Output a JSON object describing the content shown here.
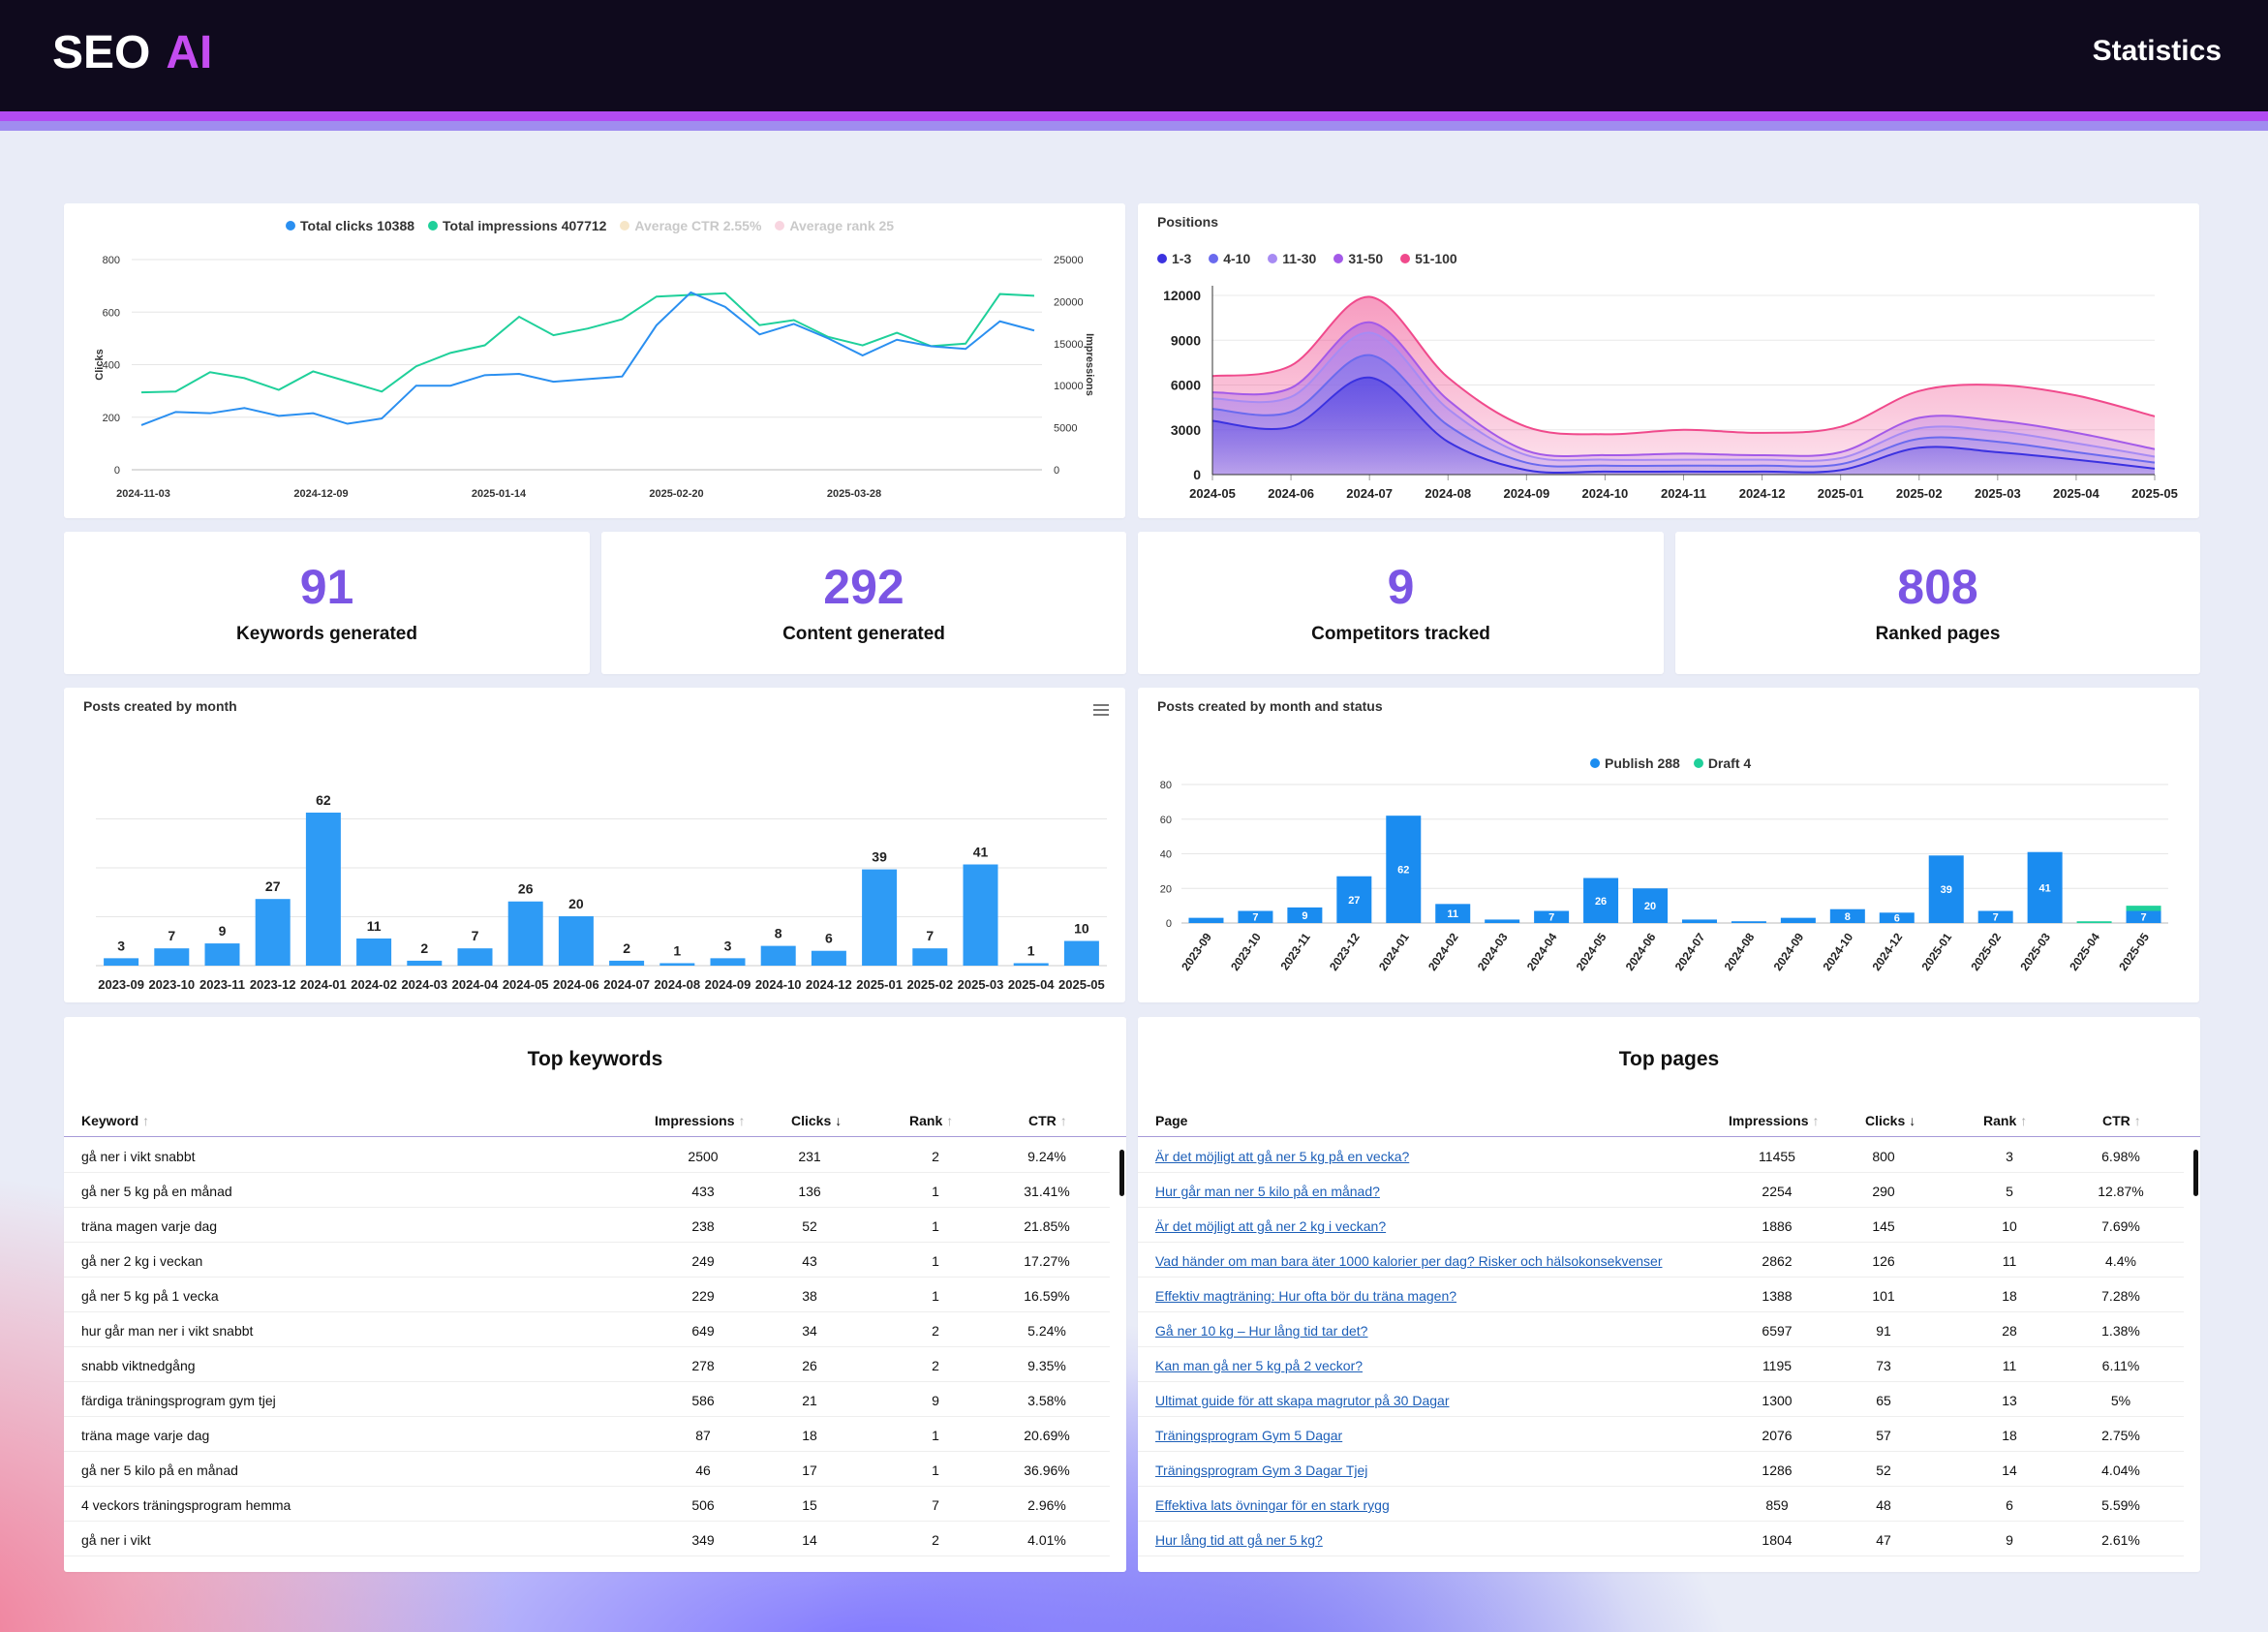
{
  "app": {
    "logo_text": "SEO",
    "logo_accent": "AI",
    "page_title": "Statistics",
    "brand_color": "#c44cf0",
    "accent_color": "#7b55e4"
  },
  "stats": [
    {
      "value": "91",
      "label": "Keywords generated"
    },
    {
      "value": "292",
      "label": "Content generated"
    },
    {
      "value": "9",
      "label": "Competitors tracked"
    },
    {
      "value": "808",
      "label": "Ranked pages"
    }
  ],
  "top_keywords": {
    "title": "Top keywords",
    "headers": [
      "Keyword",
      "Impressions",
      "Clicks",
      "Rank",
      "CTR"
    ],
    "rows": [
      [
        "gå ner i vikt snabbt",
        "2500",
        "231",
        "2",
        "9.24%"
      ],
      [
        "gå ner 5 kg på en månad",
        "433",
        "136",
        "1",
        "31.41%"
      ],
      [
        "träna magen varje dag",
        "238",
        "52",
        "1",
        "21.85%"
      ],
      [
        "gå ner 2 kg i veckan",
        "249",
        "43",
        "1",
        "17.27%"
      ],
      [
        "gå ner 5 kg på 1 vecka",
        "229",
        "38",
        "1",
        "16.59%"
      ],
      [
        "hur går man ner i vikt snabbt",
        "649",
        "34",
        "2",
        "5.24%"
      ],
      [
        "snabb viktnedgång",
        "278",
        "26",
        "2",
        "9.35%"
      ],
      [
        "färdiga träningsprogram gym tjej",
        "586",
        "21",
        "9",
        "3.58%"
      ],
      [
        "träna mage varje dag",
        "87",
        "18",
        "1",
        "20.69%"
      ],
      [
        "gå ner 5 kilo på en månad",
        "46",
        "17",
        "1",
        "36.96%"
      ],
      [
        "4 veckors träningsprogram hemma",
        "506",
        "15",
        "7",
        "2.96%"
      ],
      [
        "gå ner i vikt",
        "349",
        "14",
        "2",
        "4.01%"
      ]
    ]
  },
  "top_pages": {
    "title": "Top pages",
    "headers": [
      "Page",
      "Impressions",
      "Clicks",
      "Rank",
      "CTR"
    ],
    "rows": [
      [
        "Är det möjligt att gå ner 5 kg på en vecka?",
        "11455",
        "800",
        "3",
        "6.98%"
      ],
      [
        "Hur går man ner 5 kilo på en månad?",
        "2254",
        "290",
        "5",
        "12.87%"
      ],
      [
        "Är det möjligt att gå ner 2 kg i veckan?",
        "1886",
        "145",
        "10",
        "7.69%"
      ],
      [
        "Vad händer om man bara äter 1000 kalorier per dag? Risker och hälsokonsekvenser",
        "2862",
        "126",
        "11",
        "4.4%"
      ],
      [
        "Effektiv magträning: Hur ofta bör du träna magen?",
        "1388",
        "101",
        "18",
        "7.28%"
      ],
      [
        "Gå ner 10 kg – Hur lång tid tar det?",
        "6597",
        "91",
        "28",
        "1.38%"
      ],
      [
        "Kan man gå ner 5 kg på 2 veckor?",
        "1195",
        "73",
        "11",
        "6.11%"
      ],
      [
        "Ultimat guide för att skapa magrutor på 30 Dagar",
        "1300",
        "65",
        "13",
        "5%"
      ],
      [
        "Träningsprogram Gym 5 Dagar",
        "2076",
        "57",
        "18",
        "2.75%"
      ],
      [
        "Träningsprogram Gym 3 Dagar Tjej",
        "1286",
        "52",
        "14",
        "4.04%"
      ],
      [
        "Effektiva lats övningar för en stark rygg",
        "859",
        "48",
        "6",
        "5.59%"
      ],
      [
        "Hur lång tid att gå ner 5 kg?",
        "1804",
        "47",
        "9",
        "2.61%"
      ]
    ]
  },
  "chart_data": [
    {
      "type": "line",
      "legend": [
        {
          "label": "Total clicks 10388",
          "color": "#2a8ff0",
          "active": true
        },
        {
          "label": "Total impressions 407712",
          "color": "#1fd09a",
          "active": true
        },
        {
          "label": "Average CTR 2.55%",
          "color": "#f6e6c8",
          "active": false
        },
        {
          "label": "Average rank 25",
          "color": "#f8d5e0",
          "active": false
        }
      ],
      "ylabel": "Clicks",
      "y2label": "Impressions",
      "ylim": [
        0,
        800
      ],
      "y2lim": [
        0,
        25000
      ],
      "yticks": [
        "0",
        "200",
        "400",
        "600",
        "800"
      ],
      "y2ticks": [
        "0",
        "5000",
        "10000",
        "15000",
        "20000",
        "25000"
      ],
      "xticks": [
        "2024-11-03",
        "2024-12-09",
        "2025-01-14",
        "2025-02-20",
        "2025-03-28"
      ],
      "series": [
        {
          "name": "Total clicks",
          "values": [
            170,
            220,
            215,
            235,
            205,
            215,
            175,
            195,
            320,
            320,
            360,
            365,
            335,
            345,
            355,
            550,
            675,
            620,
            515,
            555,
            500,
            435,
            495,
            470,
            460,
            565,
            530
          ]
        },
        {
          "name": "Total impressions",
          "values": [
            9200,
            9300,
            11600,
            10900,
            9500,
            11700,
            10500,
            9300,
            12300,
            13900,
            14800,
            18200,
            16000,
            16800,
            17900,
            20600,
            20800,
            21000,
            17200,
            17800,
            15800,
            14800,
            16300,
            14700,
            15000,
            20900,
            20700
          ]
        }
      ]
    },
    {
      "type": "area",
      "title": "Positions",
      "categories": [
        "2024-05",
        "2024-06",
        "2024-07",
        "2024-08",
        "2024-09",
        "2024-10",
        "2024-11",
        "2024-12",
        "2025-01",
        "2025-02",
        "2025-03",
        "2025-04",
        "2025-05"
      ],
      "ylim": [
        0,
        12000
      ],
      "yticks": [
        "0",
        "3000",
        "6000",
        "9000",
        "12000"
      ],
      "stacked": true,
      "series": [
        {
          "name": "1-3",
          "color": "#3b32e0",
          "values": [
            3600,
            3200,
            6500,
            2200,
            300,
            200,
            200,
            200,
            300,
            1800,
            1500,
            1000,
            400
          ]
        },
        {
          "name": "4-10",
          "color": "#6a6aee",
          "values": [
            800,
            1000,
            1500,
            1100,
            500,
            400,
            400,
            400,
            400,
            600,
            700,
            500,
            400
          ]
        },
        {
          "name": "11-30",
          "color": "#a78bf3",
          "values": [
            700,
            1000,
            1500,
            1100,
            500,
            400,
            400,
            400,
            400,
            700,
            700,
            600,
            400
          ]
        },
        {
          "name": "31-50",
          "color": "#a35ae8",
          "values": [
            400,
            600,
            700,
            600,
            300,
            300,
            400,
            300,
            400,
            700,
            700,
            700,
            500
          ]
        },
        {
          "name": "51-100",
          "color": "#f04a8c",
          "values": [
            1100,
            1500,
            1700,
            1500,
            1600,
            1400,
            1600,
            1500,
            1700,
            1800,
            2400,
            2500,
            2200
          ]
        }
      ]
    },
    {
      "type": "bar",
      "title": "Posts created by month",
      "categories": [
        "2023-09",
        "2023-10",
        "2023-11",
        "2023-12",
        "2024-01",
        "2024-02",
        "2024-03",
        "2024-04",
        "2024-05",
        "2024-06",
        "2024-07",
        "2024-08",
        "2024-09",
        "2024-10",
        "2024-12",
        "2025-01",
        "2025-02",
        "2025-03",
        "2025-04",
        "2025-05"
      ],
      "values": [
        3,
        7,
        9,
        27,
        62,
        11,
        2,
        7,
        26,
        20,
        2,
        1,
        3,
        8,
        6,
        39,
        7,
        41,
        1,
        10
      ],
      "color": "#2e9bf5"
    },
    {
      "type": "bar",
      "title": "Posts created by month and status",
      "legend": [
        {
          "label": "Publish 288",
          "color": "#1a8cf0"
        },
        {
          "label": "Draft 4",
          "color": "#1fd09a"
        }
      ],
      "categories": [
        "2023-09",
        "2023-10",
        "2023-11",
        "2023-12",
        "2024-01",
        "2024-02",
        "2024-03",
        "2024-04",
        "2024-05",
        "2024-06",
        "2024-07",
        "2024-08",
        "2024-09",
        "2024-10",
        "2024-12",
        "2025-01",
        "2025-02",
        "2025-03",
        "2025-04",
        "2025-05"
      ],
      "ylim": [
        0,
        80
      ],
      "yticks": [
        "0",
        "20",
        "40",
        "60",
        "80"
      ],
      "series": [
        {
          "name": "Publish",
          "values": [
            3,
            7,
            9,
            27,
            62,
            11,
            2,
            7,
            26,
            20,
            2,
            1,
            3,
            8,
            6,
            39,
            7,
            41,
            0,
            7
          ]
        },
        {
          "name": "Draft",
          "values": [
            0,
            0,
            0,
            0,
            0,
            0,
            0,
            0,
            0,
            0,
            0,
            0,
            0,
            0,
            0,
            0,
            0,
            0,
            1,
            3
          ]
        }
      ],
      "stacked": true
    }
  ]
}
